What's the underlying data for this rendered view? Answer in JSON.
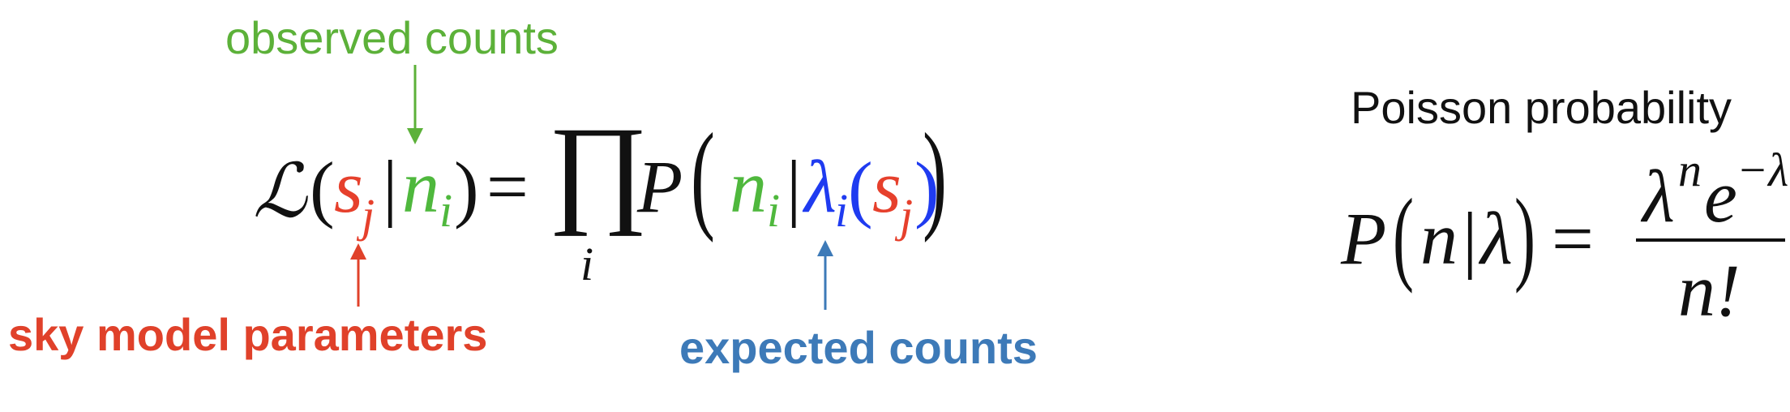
{
  "annotations": {
    "observed_counts": {
      "label": "observed counts",
      "color": "#5cb139"
    },
    "sky_model_parameters": {
      "label": "sky model parameters",
      "color": "#e0412a"
    },
    "expected_counts": {
      "label": "expected counts",
      "color": "#3d7ab8"
    }
  },
  "likelihood": {
    "script_L": "ℒ",
    "open_paren": "(",
    "s": "s",
    "s_index": "j",
    "bar": "|",
    "n": "n",
    "n_index": "i",
    "close_paren": ")",
    "equals": "=",
    "product": "∏",
    "product_index": "i",
    "P": "P",
    "lambda": "λ",
    "lambda_index": "i"
  },
  "poisson": {
    "title": "Poisson probability",
    "P": "P",
    "n": "n",
    "bar": "|",
    "lambda": "λ",
    "equals": "=",
    "numerator_lambda": "λ",
    "numerator_exp_n": "n",
    "numerator_e": "e",
    "numerator_exp_neg": "−λ",
    "denominator": "n!"
  },
  "colors": {
    "green": "#4fb83d",
    "red": "#e6402c",
    "blue": "#1f3bf0",
    "black": "#111111"
  }
}
